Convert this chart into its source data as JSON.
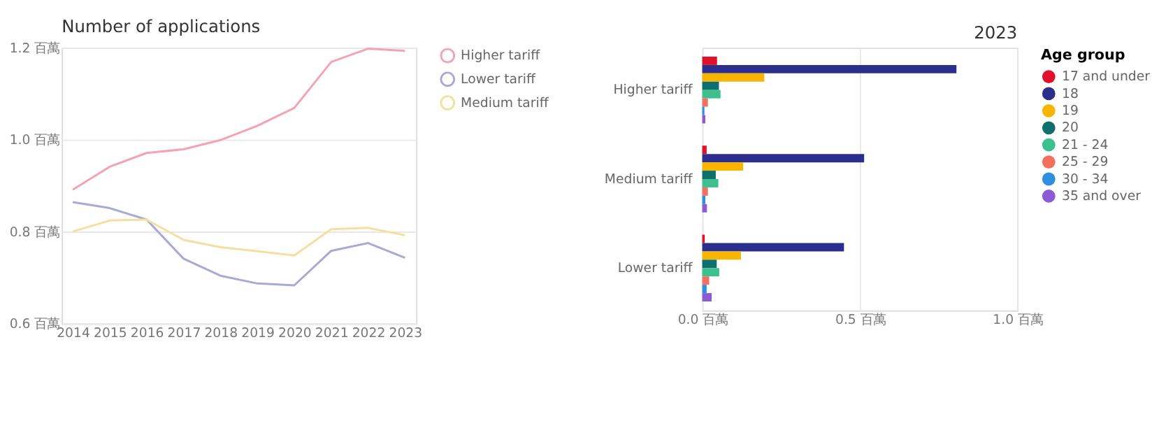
{
  "chart_data": [
    {
      "type": "line",
      "title": "Number of applications",
      "categories": [
        "2014",
        "2015",
        "2016",
        "2017",
        "2018",
        "2019",
        "2020",
        "2021",
        "2022",
        "2023"
      ],
      "series": [
        {
          "name": "Higher tariff",
          "color": "#f4a3b4",
          "values": [
            0.891,
            0.941,
            0.971,
            0.979,
            0.999,
            1.03,
            1.069,
            1.169,
            1.198,
            1.193
          ]
        },
        {
          "name": "Lower tariff",
          "color": "#a9a9d6",
          "values": [
            0.864,
            0.851,
            0.826,
            0.741,
            0.704,
            0.687,
            0.683,
            0.758,
            0.775,
            0.743
          ]
        },
        {
          "name": "Medium tariff",
          "color": "#f5dfa0",
          "values": [
            0.8,
            0.824,
            0.826,
            0.782,
            0.766,
            0.757,
            0.748,
            0.805,
            0.808,
            0.792
          ]
        }
      ],
      "ylim": [
        0.6,
        1.2
      ],
      "yticks": [
        {
          "value": 0.6,
          "label": "0.6 百萬"
        },
        {
          "value": 0.8,
          "label": "0.8 百萬"
        },
        {
          "value": 1.0,
          "label": "1.0 百萬"
        },
        {
          "value": 1.2,
          "label": "1.2 百萬"
        }
      ],
      "grid": "y",
      "legend": "right",
      "marker": "none",
      "line_style": "solid"
    },
    {
      "type": "bar",
      "orientation": "horizontal",
      "subtitle": "2023",
      "legend_title": "Age group",
      "categories": [
        "Higher tariff",
        "Medium tariff",
        "Lower tariff"
      ],
      "series": [
        {
          "name": "17 and under",
          "color": "#e0102a",
          "values": [
            0.047,
            0.014,
            0.008
          ]
        },
        {
          "name": "18",
          "color": "#2b2e8c",
          "values": [
            0.807,
            0.514,
            0.45
          ]
        },
        {
          "name": "19",
          "color": "#f7b500",
          "values": [
            0.197,
            0.13,
            0.123
          ]
        },
        {
          "name": "20",
          "color": "#0f6e6e",
          "values": [
            0.053,
            0.043,
            0.046
          ]
        },
        {
          "name": "21 - 24",
          "color": "#3dbf8e",
          "values": [
            0.058,
            0.051,
            0.054
          ]
        },
        {
          "name": "25 - 29",
          "color": "#f4705e",
          "values": [
            0.018,
            0.018,
            0.022
          ]
        },
        {
          "name": "30 - 34",
          "color": "#2d8fe0",
          "values": [
            0.007,
            0.01,
            0.014
          ]
        },
        {
          "name": "35 and over",
          "color": "#8b5bd6",
          "values": [
            0.01,
            0.015,
            0.03
          ]
        }
      ],
      "xlim": [
        0,
        1.0
      ],
      "xticks": [
        {
          "value": 0,
          "label": "0.0 百萬"
        },
        {
          "value": 0.5,
          "label": "0.5 百萬"
        },
        {
          "value": 1.0,
          "label": "1.0 百萬"
        }
      ],
      "grid": "x",
      "legend": "right"
    }
  ]
}
